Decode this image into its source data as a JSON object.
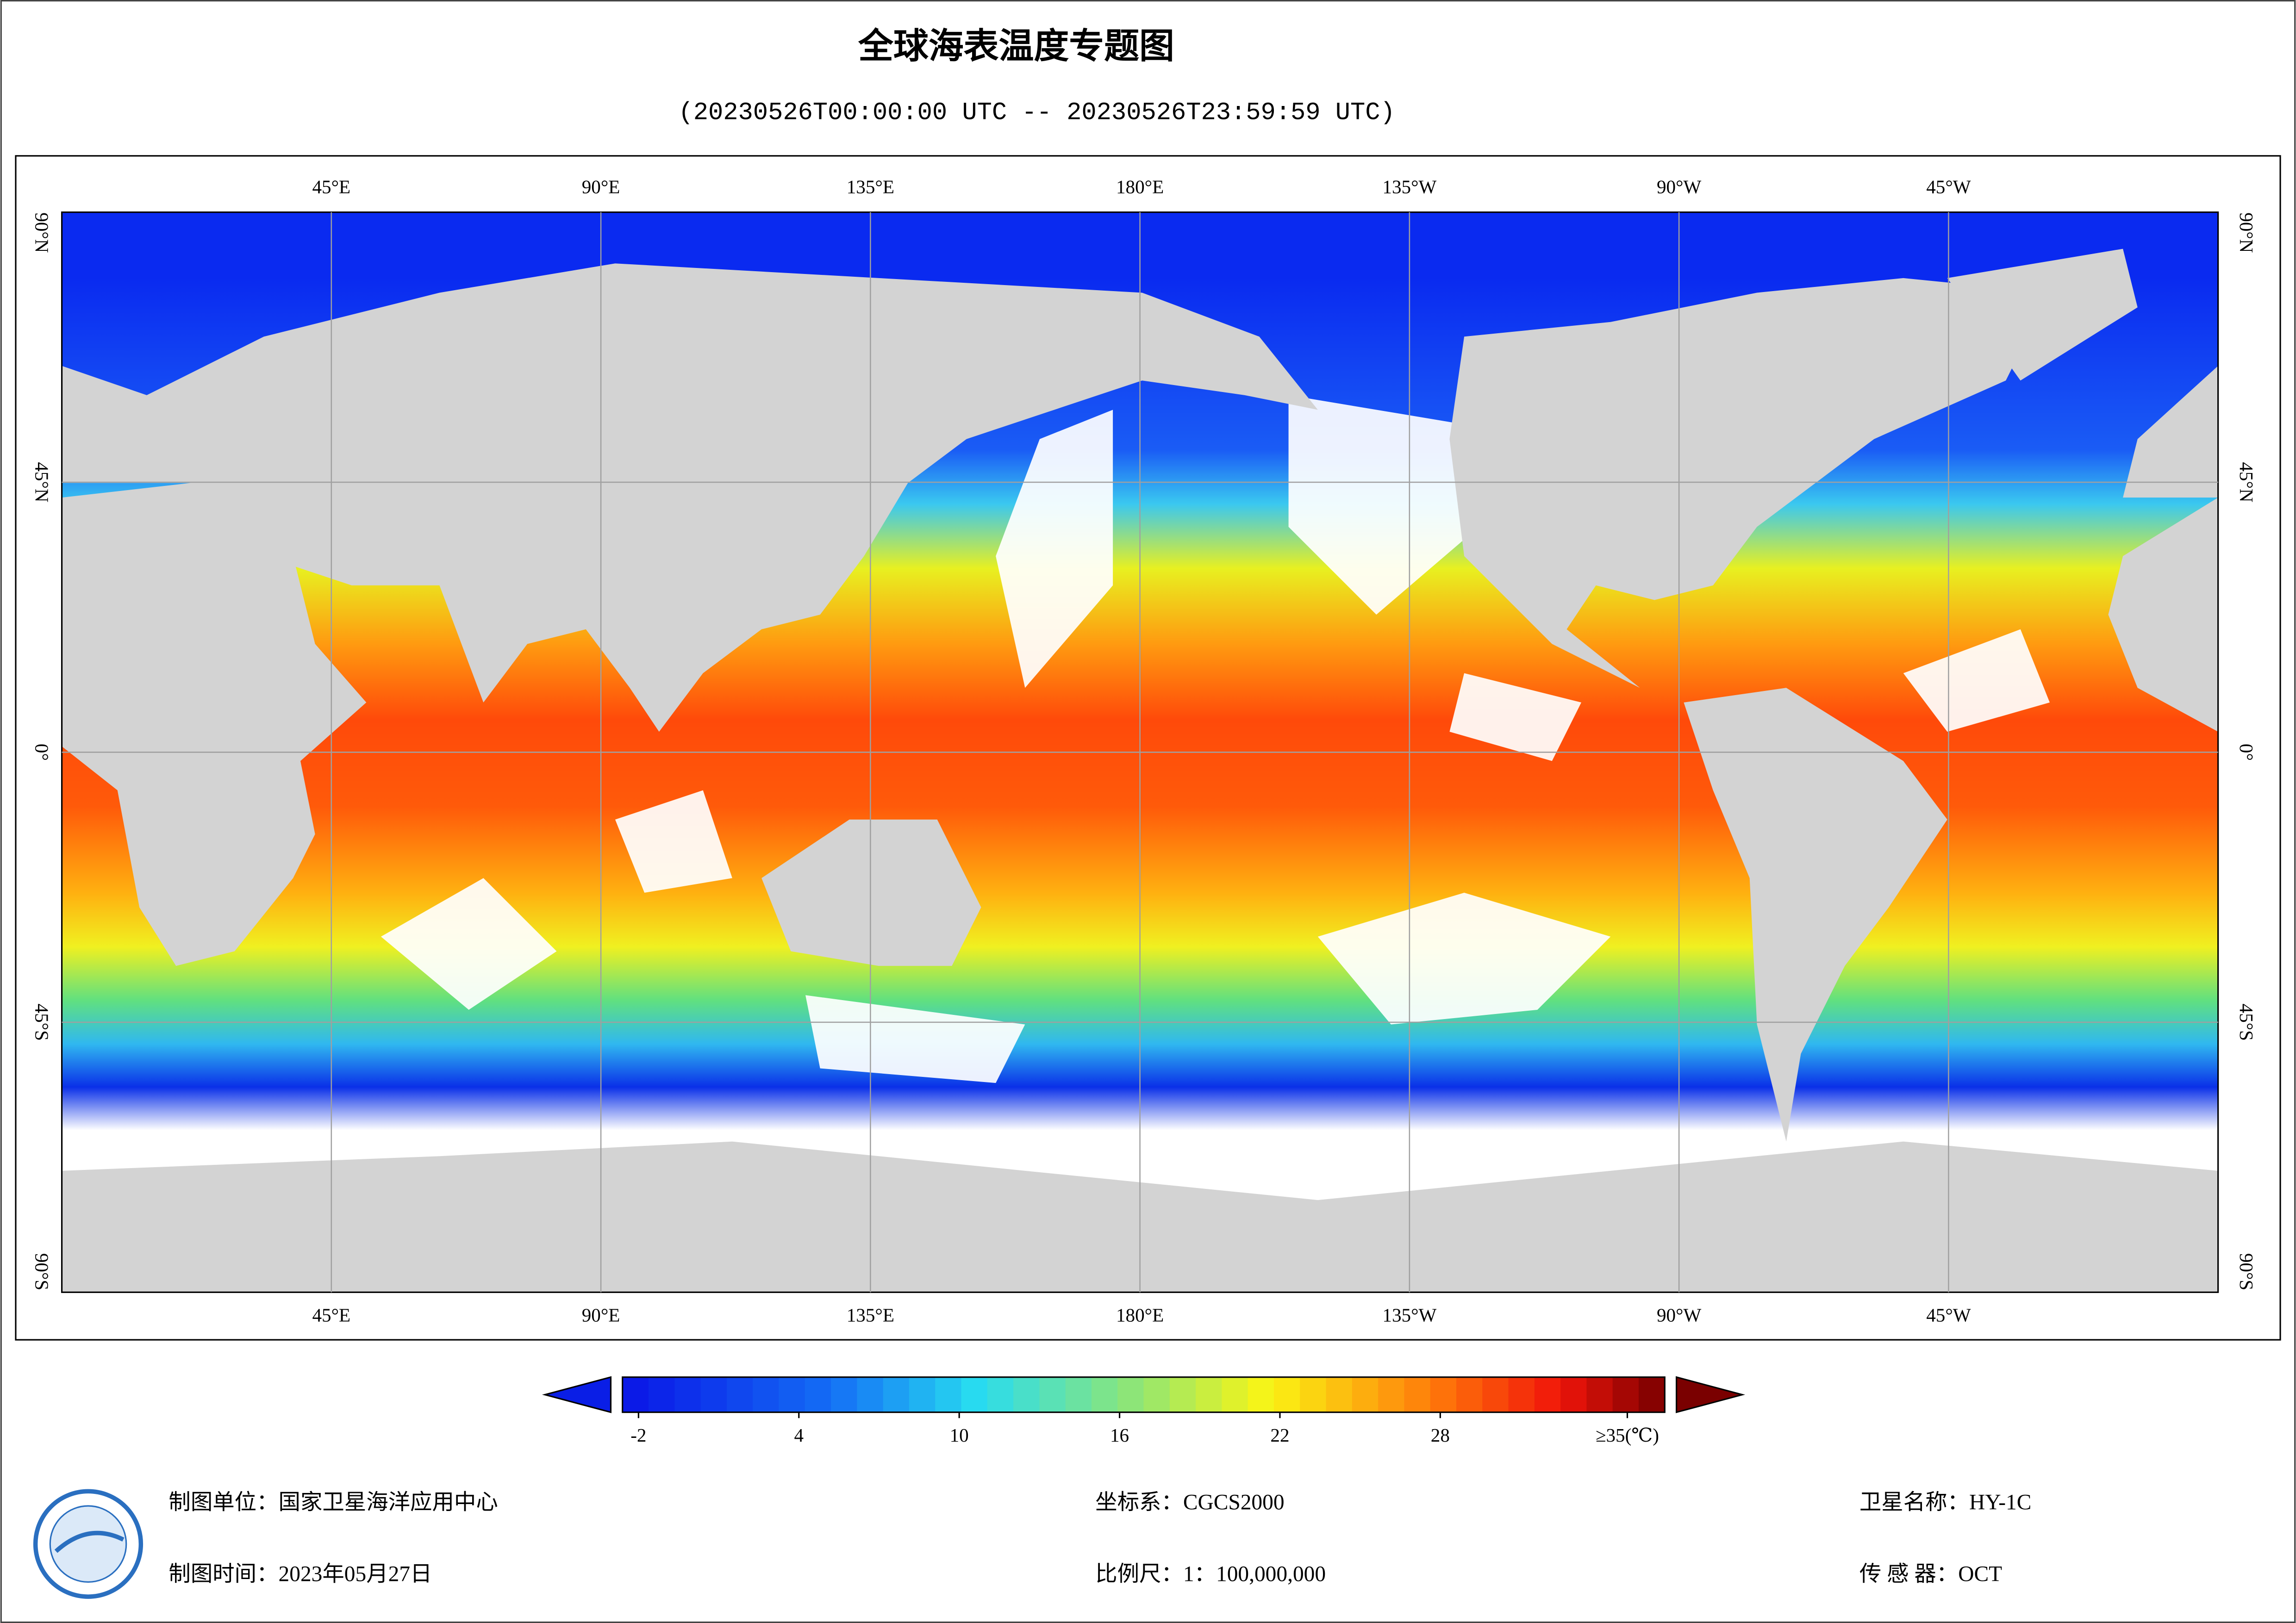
{
  "title": "全球海表温度专题图",
  "subtitle": "(20230526T00:00:00 UTC -- 20230526T23:59:59 UTC)",
  "map": {
    "lon_range": [
      0,
      360
    ],
    "lat_range": [
      -90,
      90
    ],
    "lon_ticks": [
      {
        "value": 45,
        "label": "45°E"
      },
      {
        "value": 90,
        "label": "90°E"
      },
      {
        "value": 135,
        "label": "135°E"
      },
      {
        "value": 180,
        "label": "180°E"
      },
      {
        "value": 225,
        "label": "135°W"
      },
      {
        "value": 270,
        "label": "90°W"
      },
      {
        "value": 315,
        "label": "45°W"
      }
    ],
    "lat_ticks": [
      {
        "value": 90,
        "label": "90°N"
      },
      {
        "value": 45,
        "label": "45°N"
      },
      {
        "value": 0,
        "label": "0°"
      },
      {
        "value": -45,
        "label": "45°S"
      },
      {
        "value": -90,
        "label": "90°S"
      }
    ]
  },
  "colorbar": {
    "range": [
      -2.6,
      36.4
    ],
    "ticks": [
      -2,
      4,
      10,
      16,
      22,
      28,
      {
        "value": 35,
        "label": "≥35(℃)"
      }
    ]
  },
  "footer": {
    "producer": "制图单位：国家卫星海洋应用中心",
    "date": "制图时间：2023年05月27日",
    "crs": "坐标系：CGCS2000",
    "scale": "比例尺：1：100,000,000",
    "satellite": "卫星名称：HY-1C",
    "sensor": "传 感 器：OCT"
  }
}
